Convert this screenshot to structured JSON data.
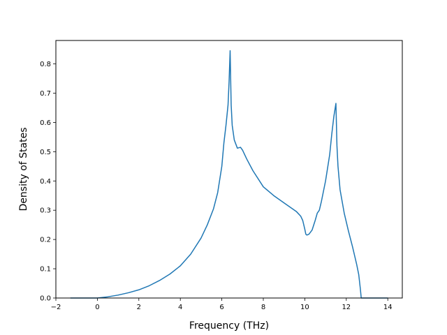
{
  "chart_data": {
    "type": "line",
    "title": "",
    "xlabel": "Frequency (THz)",
    "ylabel": "Density of States",
    "xlim": [
      -2.0,
      14.7
    ],
    "ylim": [
      0.0,
      0.88
    ],
    "xticks": [
      -2,
      0,
      2,
      4,
      6,
      8,
      10,
      12,
      14
    ],
    "xtick_labels": [
      "−2",
      "0",
      "2",
      "4",
      "6",
      "8",
      "10",
      "12",
      "14"
    ],
    "yticks": [
      0.0,
      0.1,
      0.2,
      0.3,
      0.4,
      0.5,
      0.6,
      0.7,
      0.8
    ],
    "ytick_labels": [
      "0.0",
      "0.1",
      "0.2",
      "0.3",
      "0.4",
      "0.5",
      "0.6",
      "0.7",
      "0.8"
    ],
    "grid": false,
    "legend": false,
    "line_color": "#1f77b4",
    "series": [
      {
        "x": [
          -1.3,
          0.0,
          0.5,
          1.0,
          1.5,
          2.0,
          2.5,
          3.0,
          3.5,
          4.0,
          4.5,
          5.0,
          5.3,
          5.6,
          5.8,
          6.0,
          6.1,
          6.2,
          6.3,
          6.35,
          6.4,
          6.45,
          6.5,
          6.6,
          6.75,
          6.9,
          7.0,
          7.2,
          7.5,
          8.0,
          8.5,
          9.0,
          9.3,
          9.6,
          9.8,
          9.9,
          10.0,
          10.05,
          10.1,
          10.2,
          10.35,
          10.5,
          10.6,
          10.7,
          10.8,
          11.0,
          11.2,
          11.3,
          11.4,
          11.5,
          11.55,
          11.6,
          11.7,
          11.9,
          12.1,
          12.3,
          12.5,
          12.6,
          12.68,
          12.72,
          14.0
        ],
        "y": [
          0.0,
          0.0,
          0.004,
          0.01,
          0.018,
          0.028,
          0.042,
          0.06,
          0.082,
          0.11,
          0.15,
          0.205,
          0.25,
          0.305,
          0.36,
          0.45,
          0.53,
          0.59,
          0.66,
          0.74,
          0.845,
          0.66,
          0.59,
          0.54,
          0.512,
          0.515,
          0.505,
          0.475,
          0.435,
          0.38,
          0.35,
          0.325,
          0.31,
          0.295,
          0.28,
          0.265,
          0.235,
          0.218,
          0.215,
          0.218,
          0.232,
          0.265,
          0.29,
          0.3,
          0.33,
          0.4,
          0.49,
          0.56,
          0.62,
          0.665,
          0.52,
          0.45,
          0.37,
          0.29,
          0.23,
          0.175,
          0.115,
          0.08,
          0.03,
          0.0,
          0.0
        ]
      }
    ]
  }
}
